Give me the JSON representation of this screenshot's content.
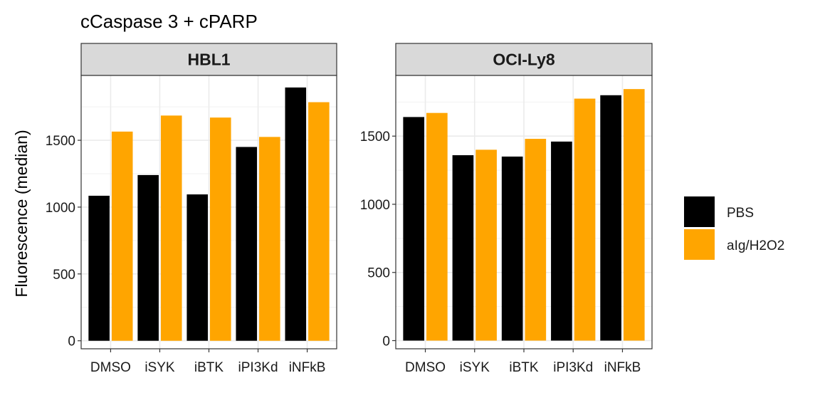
{
  "chart_data": {
    "type": "bar",
    "title": "cCaspase 3 + cPARP",
    "ylabel": "Fluorescence (median)",
    "xlabel": "",
    "categories": [
      "DMSO",
      "iSYK",
      "iBTK",
      "iPI3Kd",
      "iNFkB"
    ],
    "legend": {
      "position": "right"
    },
    "grid": true,
    "series_styles": [
      {
        "name": "PBS",
        "color": "#000000"
      },
      {
        "name": "aIg/H2O2",
        "color": "#FFA500"
      }
    ],
    "panels": [
      {
        "title": "HBL1",
        "ylim": [
          -60,
          1985
        ],
        "yticks": [
          0,
          500,
          1000,
          1500
        ],
        "series": [
          {
            "name": "PBS",
            "values": [
              1085,
              1240,
              1095,
              1450,
              1895
            ]
          },
          {
            "name": "aIg/H2O2",
            "values": [
              1565,
              1685,
              1670,
              1525,
              1785
            ]
          }
        ]
      },
      {
        "title": "OCI-Ly8",
        "ylim": [
          -60,
          1945
        ],
        "yticks": [
          0,
          500,
          1000,
          1500
        ],
        "series": [
          {
            "name": "PBS",
            "values": [
              1640,
              1360,
              1350,
              1460,
              1800
            ]
          },
          {
            "name": "aIg/H2O2",
            "values": [
              1670,
              1400,
              1480,
              1775,
              1845
            ]
          }
        ]
      }
    ]
  }
}
